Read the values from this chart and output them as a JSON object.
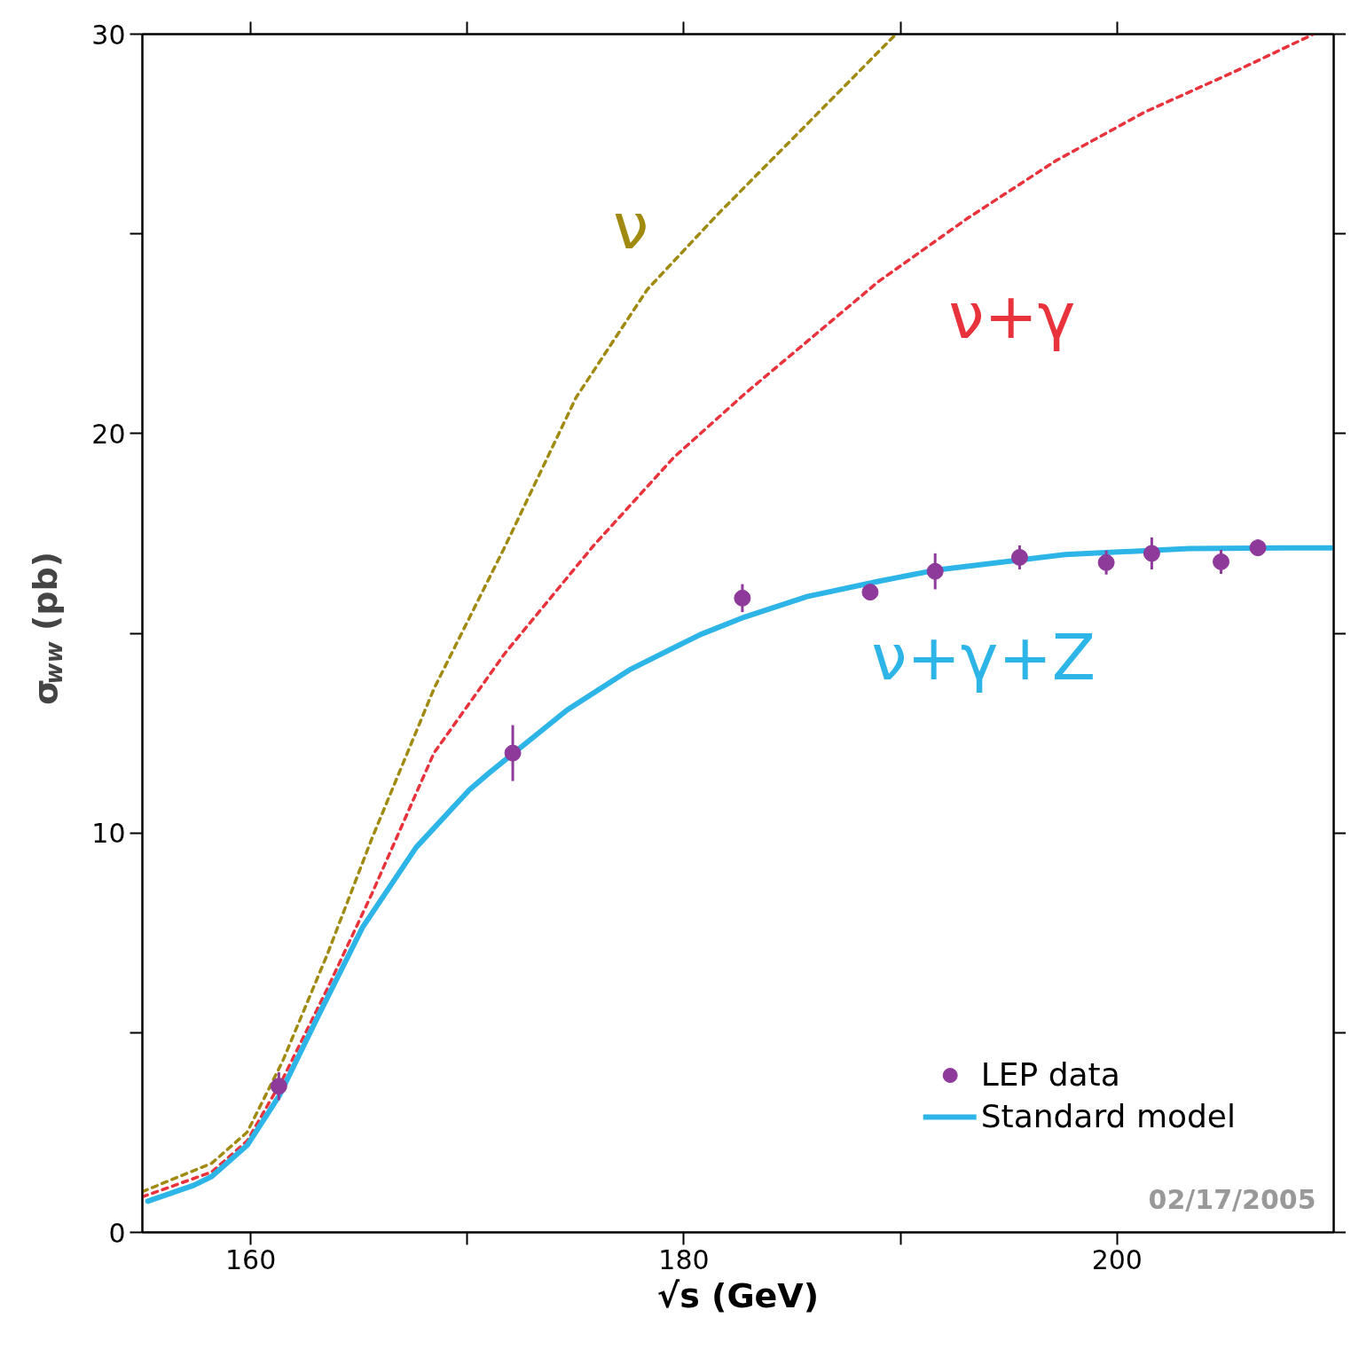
{
  "chart_data": {
    "type": "line",
    "xlabel": "√s (GeV)",
    "ylabel": "σ$_{ww}$ (pb)",
    "xlim": [
      155,
      210
    ],
    "ylim": [
      0,
      30
    ],
    "xticks": [
      160,
      {
        "value": 170,
        "label": null
      },
      180,
      {
        "value": 190,
        "label": null
      },
      200
    ],
    "yticks": [
      0,
      {
        "value": 5,
        "label": null
      },
      10,
      {
        "value": 15,
        "label": null
      },
      20,
      {
        "value": 25,
        "label": null
      },
      30
    ],
    "legend": "bottom right",
    "series": [
      {
        "color": "#a08a10",
        "line_style": "dashed",
        "x": [
          155.0,
          158.2,
          159.84,
          161.48,
          163.53,
          165.58,
          168.46,
          171.74,
          175.02,
          178.3,
          181.58,
          184.87,
          189.79
        ],
        "values": [
          1.02,
          1.73,
          2.51,
          4.29,
          6.95,
          9.84,
          13.61,
          17.17,
          20.9,
          23.6,
          25.5,
          27.3,
          30.0
        ]
      },
      {
        "color": "#e8323c",
        "line_style": "dashed",
        "x": [
          155.0,
          158.2,
          159.84,
          161.48,
          163.53,
          165.58,
          168.46,
          171.74,
          175.84,
          179.53,
          182.82,
          188.97,
          193.07,
          197.17,
          201.28,
          205.38,
          209.07
        ],
        "values": [
          0.89,
          1.51,
          2.29,
          3.84,
          6.09,
          8.46,
          12.0,
          14.5,
          17.2,
          19.4,
          21.0,
          23.8,
          25.38,
          26.83,
          28.05,
          29.05,
          30.0
        ]
      },
      {
        "name": "Standard model",
        "color": "#2eb5e8",
        "line_style": "solid",
        "x": [
          155.25,
          157.38,
          158.2,
          159.84,
          161.32,
          163.12,
          165.17,
          167.64,
          170.1,
          171.0,
          174.61,
          177.48,
          180.77,
          182.82,
          185.69,
          188.97,
          191.72,
          197.6,
          203.33,
          207.8,
          209.89
        ],
        "values": [
          0.78,
          1.18,
          1.4,
          2.18,
          3.42,
          5.42,
          7.64,
          9.64,
          11.08,
          11.5,
          13.08,
          14.08,
          14.97,
          15.41,
          15.92,
          16.3,
          16.59,
          16.97,
          17.12,
          17.14,
          17.14
        ]
      },
      {
        "type": "scatter",
        "name": "LEP data",
        "color": "#8e3a9a",
        "marker": "circle",
        "x": [
          161.3,
          172.1,
          182.7,
          188.6,
          191.6,
          195.5,
          199.5,
          201.6,
          204.8,
          206.5
        ],
        "values": [
          3.66,
          12.0,
          15.88,
          16.03,
          16.55,
          16.9,
          16.77,
          17.0,
          16.79,
          17.14
        ],
        "errors": [
          0.35,
          0.7,
          0.35,
          0.2,
          0.45,
          0.3,
          0.3,
          0.4,
          0.3,
          0.2
        ]
      }
    ],
    "annotations": [
      "ν",
      "ν+γ",
      "ν+γ+Z",
      "02/17/2005"
    ]
  }
}
